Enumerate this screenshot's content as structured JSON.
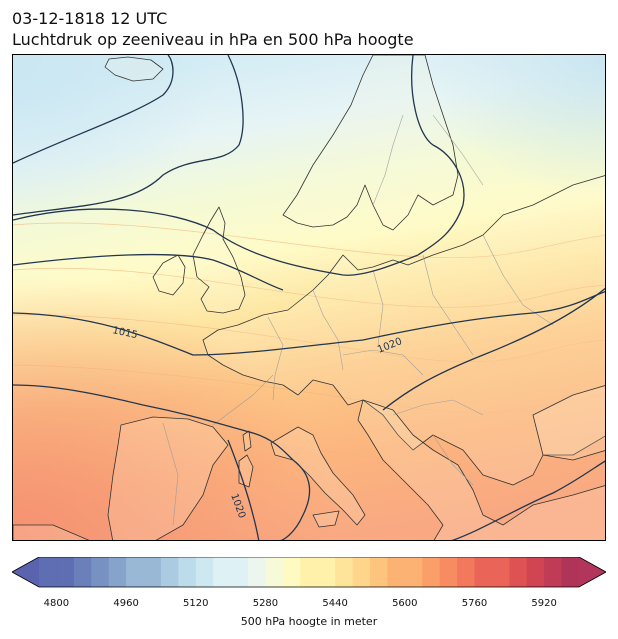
{
  "header": {
    "datetime": "03-12-1818 12 UTC",
    "subtitle": "Luchtdruk op zeeniveau in hPa en 500 hPa hoogte"
  },
  "map": {
    "region": "Europe",
    "isobar_labels": [
      "1015",
      "1020",
      "1020"
    ],
    "isobar_color": "#22364f",
    "coastline_color": "#333333",
    "border_color": "#9a9a9a"
  },
  "colorbar": {
    "label": "500 hPa hoogte in meter",
    "ticks": [
      "4800",
      "4960",
      "5120",
      "5280",
      "5440",
      "5600",
      "5760",
      "5920"
    ],
    "min": 4760,
    "max": 6000,
    "step": 40,
    "colormap": "RdYlBu_r"
  }
}
